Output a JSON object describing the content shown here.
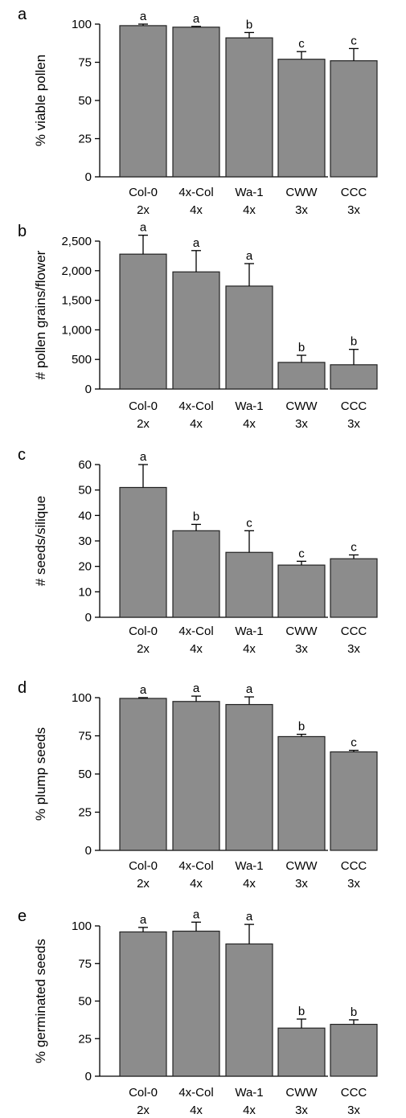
{
  "chart_data": [
    {
      "type": "bar",
      "panel": "a",
      "ylabel": "% viable pollen",
      "ylim": [
        0,
        100
      ],
      "yticks": [
        "0",
        "25",
        "50",
        "75",
        "100"
      ],
      "categories": [
        [
          "Col-0",
          "2x"
        ],
        [
          "4x-Col",
          "4x"
        ],
        [
          "Wa-1",
          "4x"
        ],
        [
          "CWW",
          "3x"
        ],
        [
          "CCC",
          "3x"
        ]
      ],
      "values": [
        99,
        98,
        91,
        77,
        76
      ],
      "errors": [
        1,
        0.5,
        3.5,
        5,
        8
      ],
      "significance": [
        "a",
        "a",
        "b",
        "c",
        "c"
      ]
    },
    {
      "type": "bar",
      "panel": "b",
      "ylabel": "# pollen grains/flower",
      "ylim": [
        0,
        2500
      ],
      "yticks": [
        "0",
        "500",
        "1,000",
        "1,500",
        "2,000",
        "2,500"
      ],
      "categories": [
        [
          "Col-0",
          "2x"
        ],
        [
          "4x-Col",
          "4x"
        ],
        [
          "Wa-1",
          "4x"
        ],
        [
          "CWW",
          "3x"
        ],
        [
          "CCC",
          "3x"
        ]
      ],
      "values": [
        2280,
        1980,
        1740,
        450,
        410
      ],
      "errors": [
        320,
        360,
        380,
        120,
        260
      ],
      "significance": [
        "a",
        "a",
        "a",
        "b",
        "b"
      ]
    },
    {
      "type": "bar",
      "panel": "c",
      "ylabel": "# seeds/silique",
      "ylim": [
        0,
        60
      ],
      "yticks": [
        "0",
        "10",
        "20",
        "30",
        "40",
        "50",
        "60"
      ],
      "categories": [
        [
          "Col-0",
          "2x"
        ],
        [
          "4x-Col",
          "4x"
        ],
        [
          "Wa-1",
          "4x"
        ],
        [
          "CWW",
          "3x"
        ],
        [
          "CCC",
          "3x"
        ]
      ],
      "values": [
        51,
        34,
        25.5,
        20.5,
        23
      ],
      "errors": [
        9,
        2.5,
        8.5,
        1.5,
        1.5
      ],
      "significance": [
        "a",
        "b",
        "c",
        "c",
        "c"
      ]
    },
    {
      "type": "bar",
      "panel": "d",
      "ylabel": "% plump seeds",
      "ylim": [
        0,
        100
      ],
      "yticks": [
        "0",
        "25",
        "50",
        "75",
        "100"
      ],
      "categories": [
        [
          "Col-0",
          "2x"
        ],
        [
          "4x-Col",
          "4x"
        ],
        [
          "Wa-1",
          "4x"
        ],
        [
          "CWW",
          "3x"
        ],
        [
          "CCC",
          "3x"
        ]
      ],
      "values": [
        99.5,
        97.5,
        95.5,
        74.5,
        64.5
      ],
      "errors": [
        0.5,
        3.5,
        5,
        1.5,
        1
      ],
      "significance": [
        "a",
        "a",
        "a",
        "b",
        "c"
      ]
    },
    {
      "type": "bar",
      "panel": "e",
      "ylabel": "% germinated seeds",
      "ylim": [
        0,
        100
      ],
      "yticks": [
        "0",
        "25",
        "50",
        "75",
        "100"
      ],
      "categories": [
        [
          "Col-0",
          "2x"
        ],
        [
          "4x-Col",
          "4x"
        ],
        [
          "Wa-1",
          "4x"
        ],
        [
          "CWW",
          "3x"
        ],
        [
          "CCC",
          "3x"
        ]
      ],
      "values": [
        96,
        96.5,
        88,
        32,
        34.5
      ],
      "errors": [
        3,
        6,
        13,
        6,
        3
      ],
      "significance": [
        "a",
        "a",
        "a",
        "b",
        "b"
      ]
    }
  ]
}
